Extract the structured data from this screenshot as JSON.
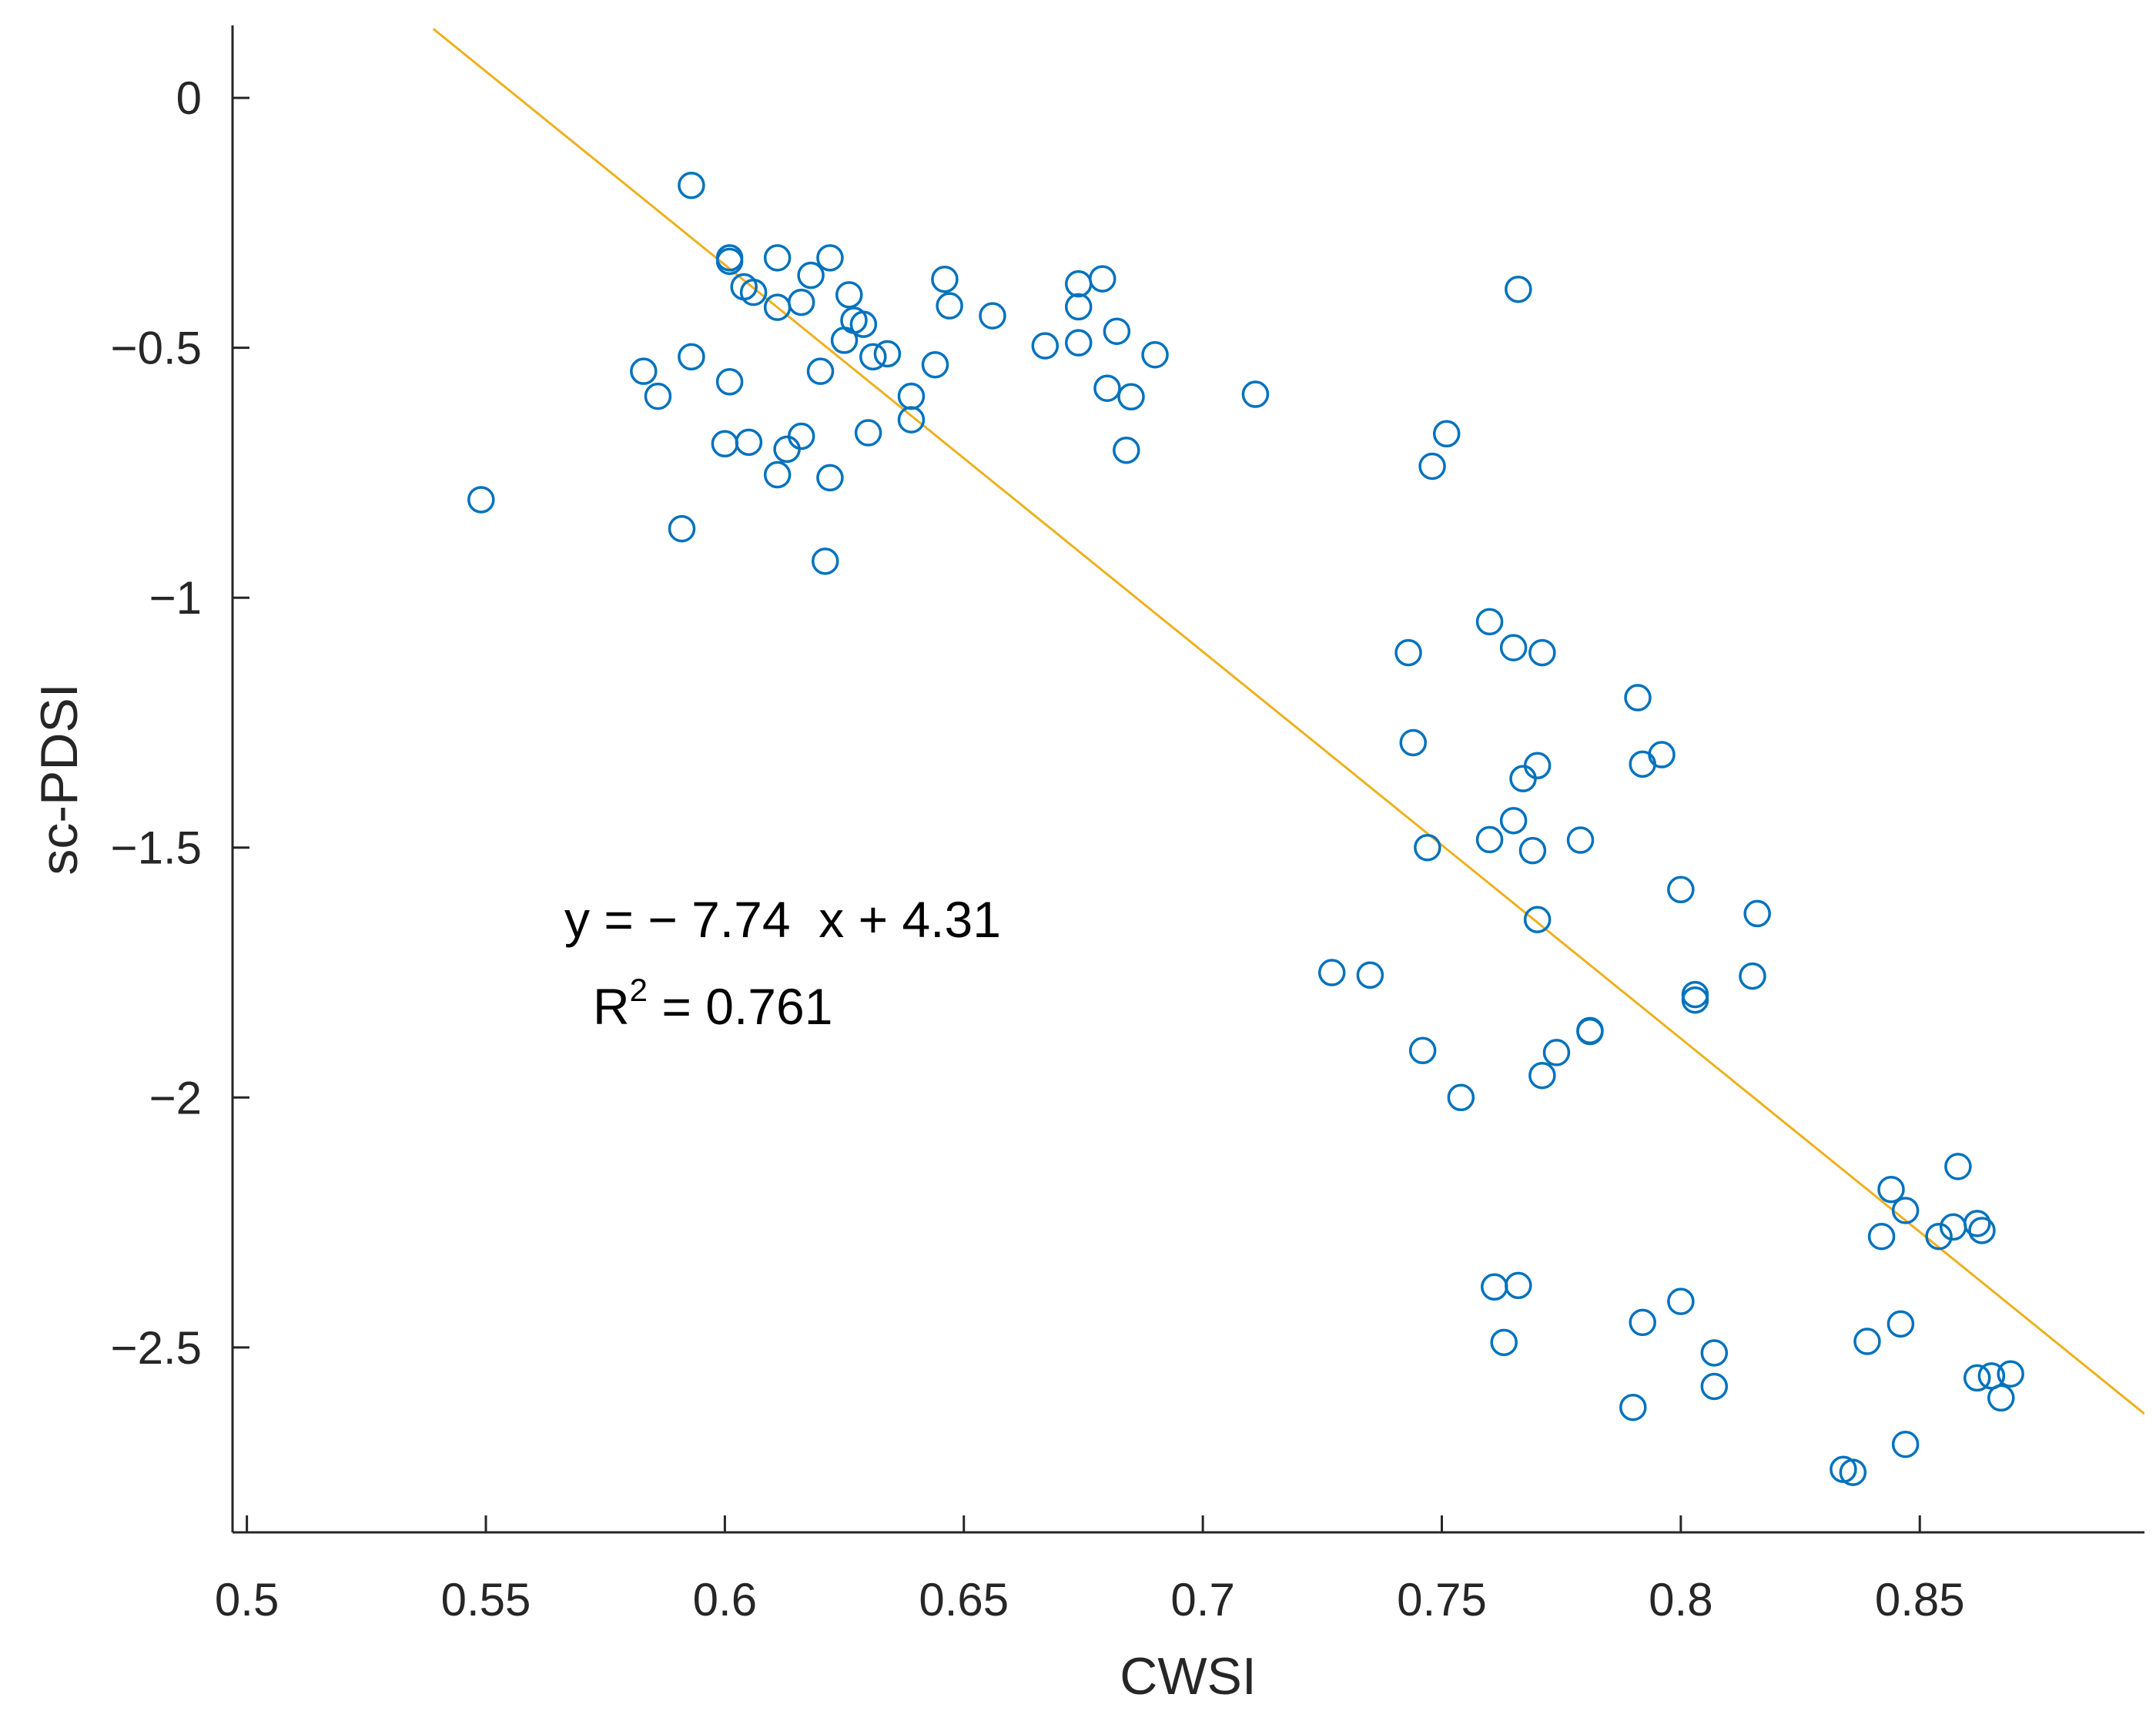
{
  "chart_data": {
    "type": "scatter",
    "title": "",
    "xlabel": "CWSI",
    "ylabel": "sc-PDSI",
    "xlim": [
      0.497,
      0.897
    ],
    "ylim": [
      -2.87,
      0.145
    ],
    "xticks": [
      0.5,
      0.55,
      0.6,
      0.65,
      0.7,
      0.75,
      0.8,
      0.85
    ],
    "xtick_labels": [
      "0.5",
      "0.55",
      "0.6",
      "0.65",
      "0.7",
      "0.75",
      "0.8",
      "0.85"
    ],
    "yticks": [
      0,
      -0.5,
      -1,
      -1.5,
      -2,
      -2.5
    ],
    "ytick_labels": [
      "0",
      "−0.5",
      "−1",
      "−1.5",
      "−2",
      "−2.5"
    ],
    "grid": false,
    "colors": {
      "markers": "#0072BD",
      "fit_line": "#EDB120",
      "axes": "#262626"
    },
    "fit": {
      "slope": -7.74,
      "intercept": 4.31,
      "x_range": [
        0.539,
        0.897
      ],
      "equation_text": "y = − 7.74  x + 4.31",
      "r2_prefix": "R",
      "r2_sup": "2",
      "r2_suffix": " = 0.761"
    },
    "series": [
      {
        "name": "observations",
        "marker": "open-circle",
        "points": [
          [
            0.549,
            -0.804
          ],
          [
            0.583,
            -0.547
          ],
          [
            0.586,
            -0.597
          ],
          [
            0.591,
            -0.862
          ],
          [
            0.593,
            -0.518
          ],
          [
            0.593,
            -0.175
          ],
          [
            0.6,
            -0.692
          ],
          [
            0.601,
            -0.568
          ],
          [
            0.601,
            -0.327
          ],
          [
            0.601,
            -0.32
          ],
          [
            0.604,
            -0.378
          ],
          [
            0.605,
            -0.689
          ],
          [
            0.606,
            -0.389
          ],
          [
            0.611,
            -0.419
          ],
          [
            0.611,
            -0.32
          ],
          [
            0.611,
            -0.754
          ],
          [
            0.613,
            -0.703
          ],
          [
            0.616,
            -0.409
          ],
          [
            0.616,
            -0.677
          ],
          [
            0.618,
            -0.355
          ],
          [
            0.62,
            -0.547
          ],
          [
            0.621,
            -0.927
          ],
          [
            0.622,
            -0.76
          ],
          [
            0.622,
            -0.32
          ],
          [
            0.625,
            -0.485
          ],
          [
            0.626,
            -0.394
          ],
          [
            0.627,
            -0.445
          ],
          [
            0.629,
            -0.453
          ],
          [
            0.63,
            -0.67
          ],
          [
            0.631,
            -0.518
          ],
          [
            0.634,
            -0.512
          ],
          [
            0.639,
            -0.597
          ],
          [
            0.639,
            -0.644
          ],
          [
            0.644,
            -0.534
          ],
          [
            0.646,
            -0.363
          ],
          [
            0.647,
            -0.416
          ],
          [
            0.656,
            -0.436
          ],
          [
            0.667,
            -0.496
          ],
          [
            0.674,
            -0.49
          ],
          [
            0.674,
            -0.372
          ],
          [
            0.674,
            -0.418
          ],
          [
            0.679,
            -0.362
          ],
          [
            0.68,
            -0.581
          ],
          [
            0.682,
            -0.467
          ],
          [
            0.684,
            -0.705
          ],
          [
            0.685,
            -0.598
          ],
          [
            0.69,
            -0.514
          ],
          [
            0.711,
            -0.593
          ],
          [
            0.727,
            -1.75
          ],
          [
            0.735,
            -1.755
          ],
          [
            0.743,
            -1.11
          ],
          [
            0.744,
            -1.29
          ],
          [
            0.746,
            -1.906
          ],
          [
            0.747,
            -1.5
          ],
          [
            0.748,
            -0.737
          ],
          [
            0.751,
            -0.672
          ],
          [
            0.754,
            -2.0
          ],
          [
            0.76,
            -1.048
          ],
          [
            0.76,
            -1.484
          ],
          [
            0.761,
            -2.379
          ],
          [
            0.763,
            -2.49
          ],
          [
            0.765,
            -1.1
          ],
          [
            0.765,
            -1.446
          ],
          [
            0.766,
            -2.376
          ],
          [
            0.766,
            -0.383
          ],
          [
            0.767,
            -1.362
          ],
          [
            0.769,
            -1.506
          ],
          [
            0.77,
            -1.336
          ],
          [
            0.77,
            -1.644
          ],
          [
            0.771,
            -1.956
          ],
          [
            0.771,
            -1.11
          ],
          [
            0.774,
            -1.91
          ],
          [
            0.779,
            -1.485
          ],
          [
            0.781,
            -1.868
          ],
          [
            0.781,
            -1.866
          ],
          [
            0.79,
            -2.62
          ],
          [
            0.791,
            -1.2
          ],
          [
            0.792,
            -2.45
          ],
          [
            0.792,
            -1.333
          ],
          [
            0.796,
            -1.314
          ],
          [
            0.8,
            -2.408
          ],
          [
            0.8,
            -1.584
          ],
          [
            0.803,
            -1.794
          ],
          [
            0.803,
            -1.805
          ],
          [
            0.807,
            -2.578
          ],
          [
            0.807,
            -2.511
          ],
          [
            0.815,
            -1.757
          ],
          [
            0.816,
            -1.632
          ],
          [
            0.834,
            -2.744
          ],
          [
            0.836,
            -2.75
          ],
          [
            0.839,
            -2.488
          ],
          [
            0.842,
            -2.278
          ],
          [
            0.844,
            -2.184
          ],
          [
            0.846,
            -2.453
          ],
          [
            0.847,
            -2.694
          ],
          [
            0.847,
            -2.226
          ],
          [
            0.854,
            -2.278
          ],
          [
            0.857,
            -2.259
          ],
          [
            0.858,
            -2.138
          ],
          [
            0.862,
            -2.252
          ],
          [
            0.862,
            -2.561
          ],
          [
            0.863,
            -2.266
          ],
          [
            0.865,
            -2.557
          ],
          [
            0.867,
            -2.601
          ],
          [
            0.869,
            -2.553
          ]
        ]
      }
    ]
  }
}
